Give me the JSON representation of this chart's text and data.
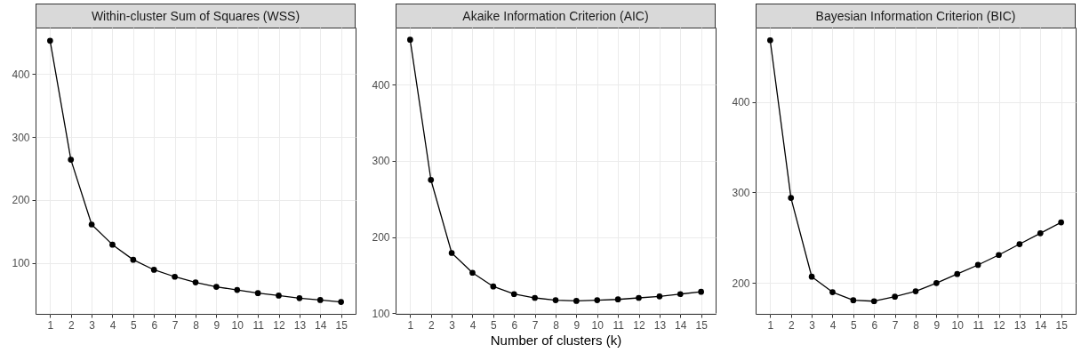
{
  "chart_data": [
    {
      "type": "line",
      "title": "Within-cluster Sum of Squares (WSS)",
      "x": [
        1,
        2,
        3,
        4,
        5,
        6,
        7,
        8,
        9,
        10,
        11,
        12,
        13,
        14,
        15
      ],
      "values": [
        453,
        264,
        161,
        129,
        105,
        89,
        78,
        69,
        62,
        57,
        52,
        48,
        44,
        41,
        38
      ],
      "color": "#000000",
      "marker": "circle",
      "grid": true,
      "xlim": [
        0.3,
        15.7
      ],
      "xticks": [
        1,
        2,
        3,
        4,
        5,
        6,
        7,
        8,
        9,
        10,
        11,
        12,
        13,
        14,
        15
      ],
      "ylim": [
        19,
        474
      ],
      "yticks": [
        100,
        200,
        300,
        400
      ]
    },
    {
      "type": "line",
      "title": "Akaike Information Criterion (AIC)",
      "xlabel": "Number of clusters (k)",
      "x": [
        1,
        2,
        3,
        4,
        5,
        6,
        7,
        8,
        9,
        10,
        11,
        12,
        13,
        14,
        15
      ],
      "values": [
        459,
        275,
        179,
        153,
        135,
        125,
        120,
        117,
        116,
        117,
        118,
        120,
        122,
        125,
        128
      ],
      "color": "#000000",
      "marker": "circle",
      "grid": true,
      "xlim": [
        0.3,
        15.7
      ],
      "xticks": [
        1,
        2,
        3,
        4,
        5,
        6,
        7,
        8,
        9,
        10,
        11,
        12,
        13,
        14,
        15
      ],
      "ylim": [
        99,
        475
      ],
      "yticks": [
        100,
        200,
        300,
        400
      ]
    },
    {
      "type": "line",
      "title": "Bayesian Information Criterion (BIC)",
      "x": [
        1,
        2,
        3,
        4,
        5,
        6,
        7,
        8,
        9,
        10,
        11,
        12,
        13,
        14,
        15
      ],
      "values": [
        468,
        294,
        207,
        190,
        181,
        180,
        185,
        191,
        200,
        210,
        220,
        231,
        243,
        255,
        267
      ],
      "color": "#000000",
      "marker": "circle",
      "grid": true,
      "xlim": [
        0.3,
        15.7
      ],
      "xticks": [
        1,
        2,
        3,
        4,
        5,
        6,
        7,
        8,
        9,
        10,
        11,
        12,
        13,
        14,
        15
      ],
      "ylim": [
        166,
        482
      ],
      "yticks": [
        200,
        300,
        400
      ]
    }
  ]
}
